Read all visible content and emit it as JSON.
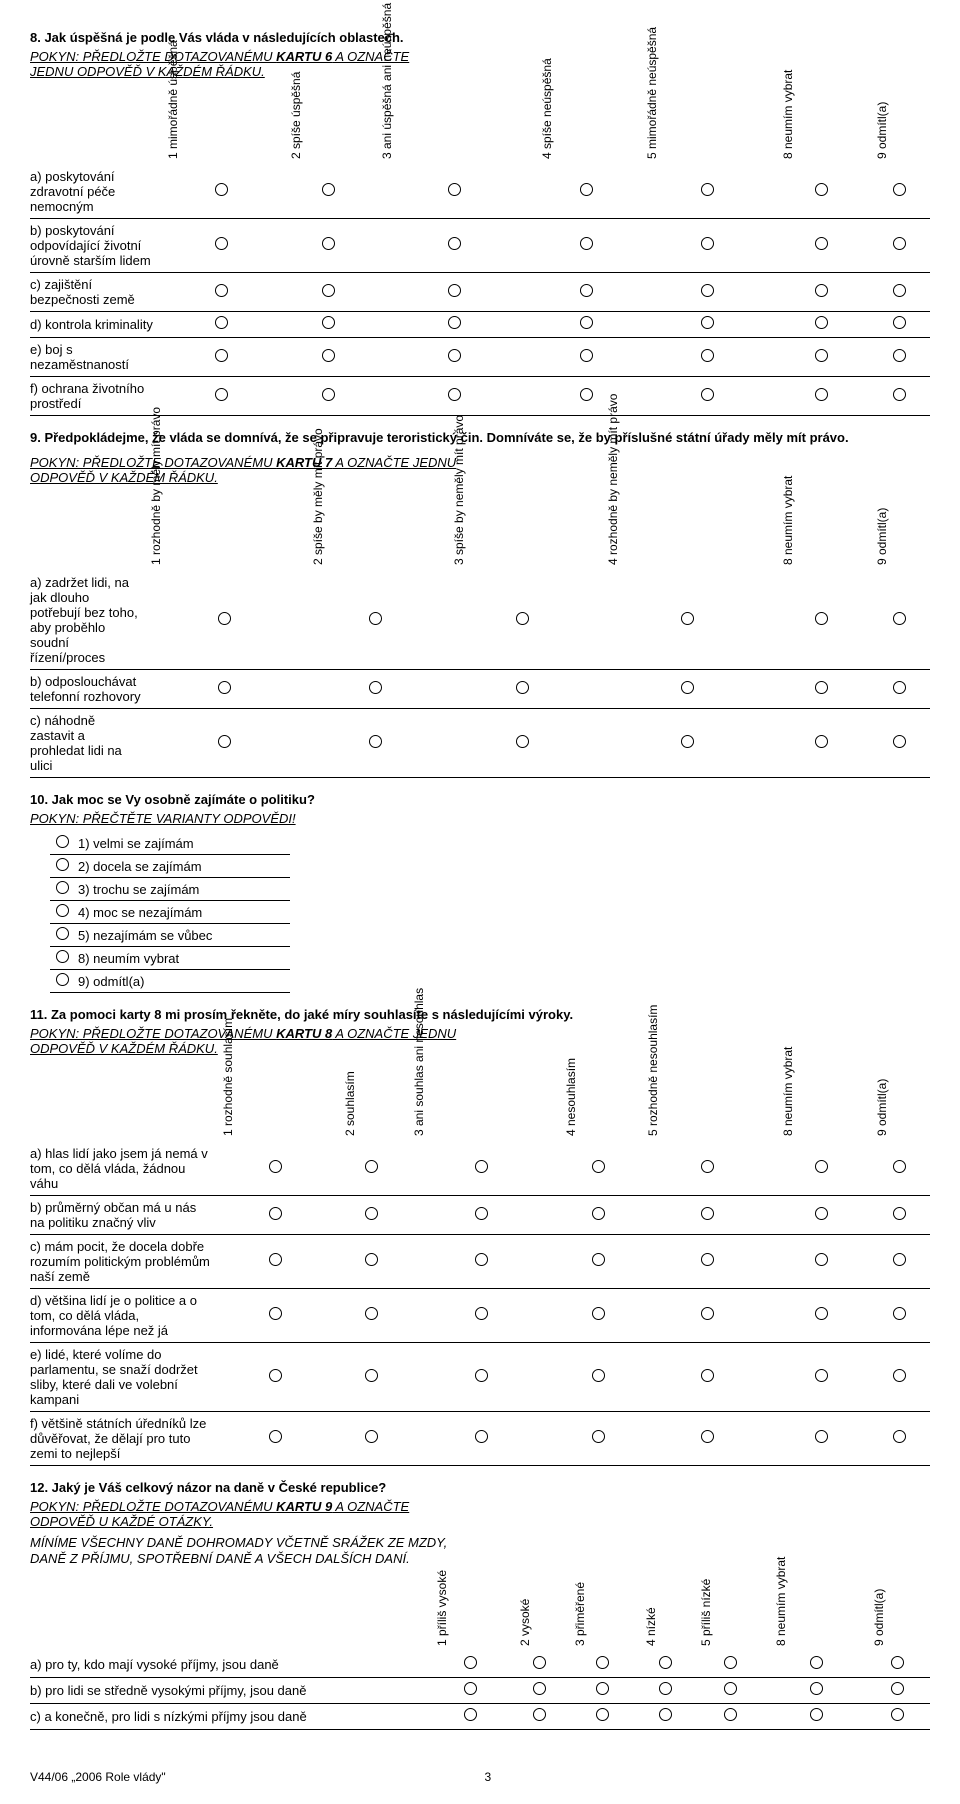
{
  "q8": {
    "title": "8. Jak úspěšná je podle Vás vláda v následujících oblastech.",
    "instr_prefix": "POKYN: PŘEDLOŽTE DOTAZOVANÉMU ",
    "instr_bold": "KARTU 6",
    "instr_suffix": " A OZNAČTE JEDNU ODPOVĚĎ V KAŽDÉM ŘÁDKU.",
    "cols": [
      "1 mimořádně úspěšná",
      "2 spíše úspěšná",
      "3 ani úspěšná ani neúspěšná",
      "4 spíše neúspěšná",
      "5 mimořádně neúspěšná",
      "8 neumím vybrat",
      "9 odmítl(a)"
    ],
    "rows": [
      "a) poskytování zdravotní péče nemocným",
      "b) poskytování odpovídající životní úrovně starším lidem",
      "c) zajištění bezpečnosti země",
      "d) kontrola kriminality",
      "e) boj s nezaměstnaností",
      "f) ochrana životního prostředí"
    ]
  },
  "q9": {
    "title": "9. Předpokládejme, že vláda se domnívá, že se připravuje teroristický čin. Domníváte se, že by příslušné státní úřady měly mít právo.",
    "instr_prefix": "POKYN: PŘEDLOŽTE DOTAZOVANÉMU ",
    "instr_bold": "KARTU 7",
    "instr_suffix": " A OZNAČTE JEDNU ODPOVĚĎ V KAŽDÉM ŘÁDKU.",
    "cols": [
      "1 rozhodně by měly mít právo",
      "2 spíše by měly mít právo",
      "3 spíše by neměly mít právo",
      "4 rozhodně by neměly mít právo",
      "8 neumím vybrat",
      "9 odmítl(a)"
    ],
    "rows": [
      "a) zadržet lidi, na jak dlouho potřebují bez toho, aby proběhlo soudní řízení/proces",
      "b) odposlouchávat telefonní rozhovory",
      "c) náhodně zastavit a prohledat lidi na ulici"
    ]
  },
  "q10": {
    "title": "10. Jak moc se Vy osobně zajímáte o politiku?",
    "instr": "POKYN: PŘEČTĚTE VARIANTY ODPOVĚDI!",
    "opts": [
      "1) velmi se zajímám",
      "2) docela se zajímám",
      "3) trochu se zajímám",
      "4) moc se nezajímám",
      "5) nezajímám se vůbec",
      "8) neumím vybrat",
      "9) odmítl(a)"
    ]
  },
  "q11": {
    "title": "11. Za pomoci karty 8 mi prosím řekněte, do jaké míry souhlasíte s následujícími výroky.",
    "instr_prefix": "POKYN: PŘEDLOŽTE DOTAZOVANÉMU ",
    "instr_bold": "KARTU 8",
    "instr_suffix": " A OZNAČTE JEDNU ODPOVĚĎ V KAŽDÉM ŘÁDKU.",
    "cols": [
      "1 rozhodně souhlasím",
      "2 souhlasím",
      "3 ani souhlas ani nesouhlas",
      "4 nesouhlasím",
      "5 rozhodně nesouhlasím",
      "8 neumím vybrat",
      "9 odmítl(a)"
    ],
    "rows": [
      "a) hlas lidí jako jsem já nemá v tom, co dělá vláda, žádnou váhu",
      "b) průměrný občan má u nás na politiku značný vliv",
      "c) mám pocit, že docela dobře rozumím politickým problémům naší země",
      "d) většina lidí je o politice a o tom, co dělá vláda, informována lépe než já",
      "e) lidé, které volíme do parlamentu, se snaží dodržet sliby, které dali ve volební kampani",
      "f) většině státních úředníků lze důvěřovat, že dělají pro tuto zemi to nejlepší"
    ]
  },
  "q12": {
    "title": "12. Jaký je Váš celkový názor na daně v České republice?",
    "instr_prefix": "POKYN: PŘEDLOŽTE DOTAZOVANÉMU ",
    "instr_bold": "KARTU 9",
    "instr_suffix": " A OZNAČTE ODPOVĚĎ U KAŽDÉ OTÁZKY.",
    "instr_extra": "MÍNÍME VŠECHNY DANĚ DOHROMADY VČETNĚ SRÁŽEK ZE MZDY, DANĚ Z PŘÍJMU, SPOTŘEBNÍ DANĚ A VŠECH DALŠÍCH DANÍ.",
    "cols": [
      "1 příliš vysoké",
      "2 vysoké",
      "3 přiměřené",
      "4 nízké",
      "5 příliš nízké",
      "8 neumím vybrat",
      "9 odmítl(a)"
    ],
    "rows": [
      "a) pro ty, kdo mají vysoké příjmy, jsou daně",
      "b) pro lidi se středně vysokými příjmy, jsou daně",
      "c) a konečně, pro lidi s nízkými příjmy jsou daně"
    ]
  },
  "footer": {
    "left": "V44/06 „2006 Role vlády\"",
    "page": "3"
  }
}
